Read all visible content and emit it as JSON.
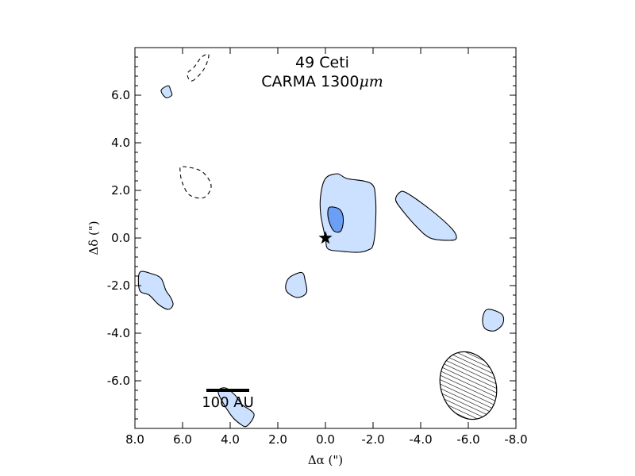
{
  "chart_data": {
    "type": "contour",
    "title_line1": "49 Ceti",
    "title_line2_prefix": "CARMA 1300",
    "title_line2_unit": "μm",
    "xlabel": "Δα (\")",
    "ylabel": "Δδ (\")",
    "xlim": [
      8.0,
      -8.0
    ],
    "ylim": [
      -8.0,
      8.0
    ],
    "x_ticks": [
      -8.0,
      -6.0,
      -4.0,
      -2.0,
      0.0,
      2.0,
      4.0,
      6.0,
      8.0
    ],
    "x_tick_labels": [
      "-8.0",
      "-6.0",
      "-4.0",
      "-2.0",
      "0.0",
      "2.0",
      "4.0",
      "6.0",
      "8.0"
    ],
    "y_ticks": [
      -6.0,
      -4.0,
      -2.0,
      0.0,
      2.0,
      4.0,
      6.0
    ],
    "y_tick_labels": [
      "-6.0",
      "-4.0",
      "-2.0",
      "0.0",
      "2.0",
      "4.0",
      "6.0"
    ],
    "star": {
      "x": 0.0,
      "y": 0.0
    },
    "scale_bar": {
      "label": "100 AU",
      "x_start": 3.2,
      "x_end": 5.0,
      "y": -6.4
    },
    "beam": {
      "x": -6.0,
      "y": -6.2,
      "major": 2.9,
      "minor": 2.3,
      "pa_deg": 20
    },
    "contours": [
      {
        "level": "positive",
        "points": [
          [
            -0.9,
            2.5
          ],
          [
            -1.9,
            2.3
          ],
          [
            -2.1,
            1.7
          ],
          [
            -2.1,
            0.5
          ],
          [
            -2.0,
            -0.3
          ],
          [
            -1.8,
            -0.5
          ],
          [
            -1.4,
            -0.6
          ],
          [
            -0.6,
            -0.55
          ],
          [
            -0.1,
            -0.45
          ],
          [
            0.0,
            0.0
          ],
          [
            0.2,
            1.0
          ],
          [
            0.2,
            1.8
          ],
          [
            0.0,
            2.5
          ],
          [
            -0.5,
            2.7
          ]
        ]
      },
      {
        "level": "positive_inner",
        "points": [
          [
            -0.2,
            1.3
          ],
          [
            -0.6,
            1.2
          ],
          [
            -0.75,
            0.8
          ],
          [
            -0.65,
            0.3
          ],
          [
            -0.35,
            0.3
          ],
          [
            -0.15,
            0.7
          ],
          [
            -0.1,
            1.1
          ]
        ]
      },
      {
        "level": "positive",
        "points": [
          [
            -3.4,
            1.9
          ],
          [
            -4.4,
            1.2
          ],
          [
            -5.3,
            0.4
          ],
          [
            -5.5,
            0.0
          ],
          [
            -5.2,
            -0.1
          ],
          [
            -4.4,
            0.0
          ],
          [
            -3.8,
            0.5
          ],
          [
            -3.2,
            1.2
          ],
          [
            -2.95,
            1.6
          ],
          [
            -3.1,
            1.9
          ]
        ]
      },
      {
        "level": "positive",
        "points": [
          [
            1.0,
            -1.45
          ],
          [
            1.55,
            -1.7
          ],
          [
            1.65,
            -2.2
          ],
          [
            1.2,
            -2.5
          ],
          [
            0.8,
            -2.3
          ],
          [
            0.85,
            -1.8
          ]
        ]
      },
      {
        "level": "positive",
        "points": [
          [
            -6.8,
            -3.0
          ],
          [
            -7.4,
            -3.2
          ],
          [
            -7.45,
            -3.6
          ],
          [
            -7.1,
            -3.9
          ],
          [
            -6.7,
            -3.8
          ],
          [
            -6.6,
            -3.4
          ]
        ]
      },
      {
        "level": "positive",
        "points": [
          [
            6.6,
            6.4
          ],
          [
            6.9,
            6.2
          ],
          [
            6.7,
            5.9
          ],
          [
            6.45,
            6.0
          ],
          [
            6.5,
            6.2
          ]
        ]
      },
      {
        "level": "positive",
        "points": [
          [
            7.8,
            -1.45
          ],
          [
            7.3,
            -1.5
          ],
          [
            6.9,
            -1.7
          ],
          [
            6.7,
            -2.2
          ],
          [
            6.5,
            -2.5
          ],
          [
            6.4,
            -2.8
          ],
          [
            6.6,
            -3.0
          ],
          [
            7.0,
            -2.8
          ],
          [
            7.4,
            -2.4
          ],
          [
            7.8,
            -2.2
          ]
        ]
      },
      {
        "level": "positive",
        "points": [
          [
            4.2,
            -6.3
          ],
          [
            4.5,
            -6.5
          ],
          [
            4.0,
            -7.4
          ],
          [
            3.6,
            -7.8
          ],
          [
            3.3,
            -7.9
          ],
          [
            3.0,
            -7.4
          ],
          [
            3.5,
            -7.0
          ],
          [
            3.8,
            -6.6
          ]
        ]
      },
      {
        "level": "negative",
        "points": [
          [
            5.6,
            6.6
          ],
          [
            5.1,
            7.1
          ],
          [
            4.9,
            7.7
          ],
          [
            5.2,
            7.6
          ],
          [
            5.5,
            7.2
          ],
          [
            5.8,
            6.9
          ]
        ]
      },
      {
        "level": "negative",
        "points": [
          [
            6.0,
            3.0
          ],
          [
            5.2,
            2.8
          ],
          [
            4.8,
            2.2
          ],
          [
            5.1,
            1.7
          ],
          [
            5.7,
            1.8
          ],
          [
            6.0,
            2.3
          ],
          [
            6.1,
            2.8
          ]
        ]
      }
    ]
  }
}
